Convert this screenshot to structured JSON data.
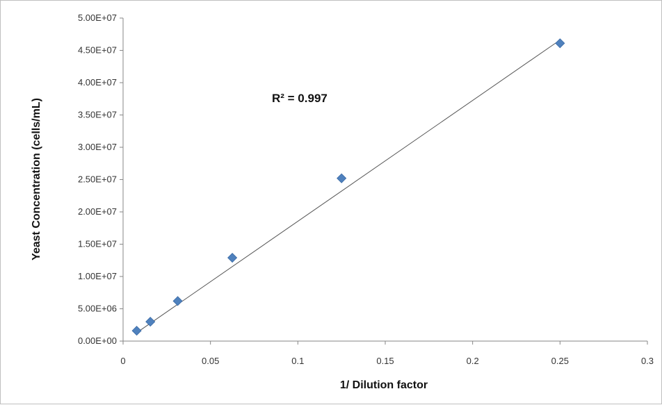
{
  "chart_data": {
    "type": "scatter",
    "xlabel": "1/ Dilution factor",
    "ylabel": "Yeast Concentration (cells/mL)",
    "xlim": [
      0,
      0.3
    ],
    "ylim": [
      0,
      50000000
    ],
    "x_ticks": [
      "0",
      "0.05",
      "0.1",
      "0.15",
      "0.2",
      "0.25",
      "0.3"
    ],
    "x_tick_values": [
      0,
      0.05,
      0.1,
      0.15,
      0.2,
      0.25,
      0.3
    ],
    "y_ticks": [
      "0.00E+00",
      "5.00E+06",
      "1.00E+07",
      "1.50E+07",
      "2.00E+07",
      "2.50E+07",
      "3.00E+07",
      "3.50E+07",
      "4.00E+07",
      "4.50E+07",
      "5.00E+07"
    ],
    "y_tick_values": [
      0,
      5000000,
      10000000,
      15000000,
      20000000,
      25000000,
      30000000,
      35000000,
      40000000,
      45000000,
      50000000
    ],
    "grid": false,
    "legend": "none",
    "marker_color": "#4f81bd",
    "trendline_color": "#555555",
    "points": [
      {
        "x": 0.0078,
        "y": 1600000
      },
      {
        "x": 0.0156,
        "y": 3000000
      },
      {
        "x": 0.03125,
        "y": 6200000
      },
      {
        "x": 0.0625,
        "y": 12900000
      },
      {
        "x": 0.125,
        "y": 25200000
      },
      {
        "x": 0.25,
        "y": 46100000
      }
    ],
    "trendline": {
      "x": [
        0.0078,
        0.25
      ],
      "y": [
        1300000,
        46600000
      ]
    },
    "annotation": "R² = 0.997"
  }
}
